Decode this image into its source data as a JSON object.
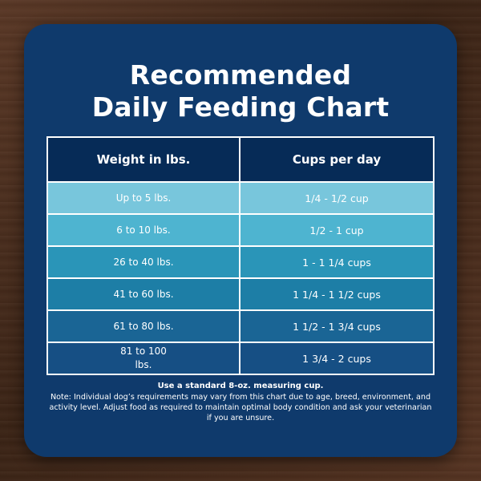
{
  "title": {
    "line1": "Recommended",
    "line2": "Daily Feeding Chart"
  },
  "table": {
    "headers": [
      "Weight in lbs.",
      "Cups per day"
    ],
    "rows": [
      {
        "weight": "Up to 5 lbs.",
        "cups": "1/4 - 1/2 cup"
      },
      {
        "weight": "6 to 10 lbs.",
        "cups": "1/2 - 1 cup"
      },
      {
        "weight": "26 to 40 lbs.",
        "cups": "1 - 1 1/4 cups"
      },
      {
        "weight": "41 to 60 lbs.",
        "cups": "1 1/4 - 1 1/2 cups"
      },
      {
        "weight": "61 to 80 lbs.",
        "cups": "1 1/2 - 1 3/4 cups"
      },
      {
        "weight_line1": "81 to 100",
        "weight_line2": "lbs.",
        "cups": "1 3/4 - 2 cups"
      }
    ],
    "row_colors": [
      "#78c6dc",
      "#4eb4d0",
      "#2a95b8",
      "#1d7ea6",
      "#1a6595",
      "#164f84"
    ]
  },
  "notes": {
    "measure": "Use a standard 8-oz. measuring cup.",
    "disclaimer": "Note: Individual dog’s requirements may vary from this chart due to age, breed, environment, and activity level. Adjust food as required to maintain optimal body condition and ask your veterinarian if you are unsure."
  },
  "colors": {
    "card": "#0f3a6c",
    "header_row": "#062b57"
  }
}
